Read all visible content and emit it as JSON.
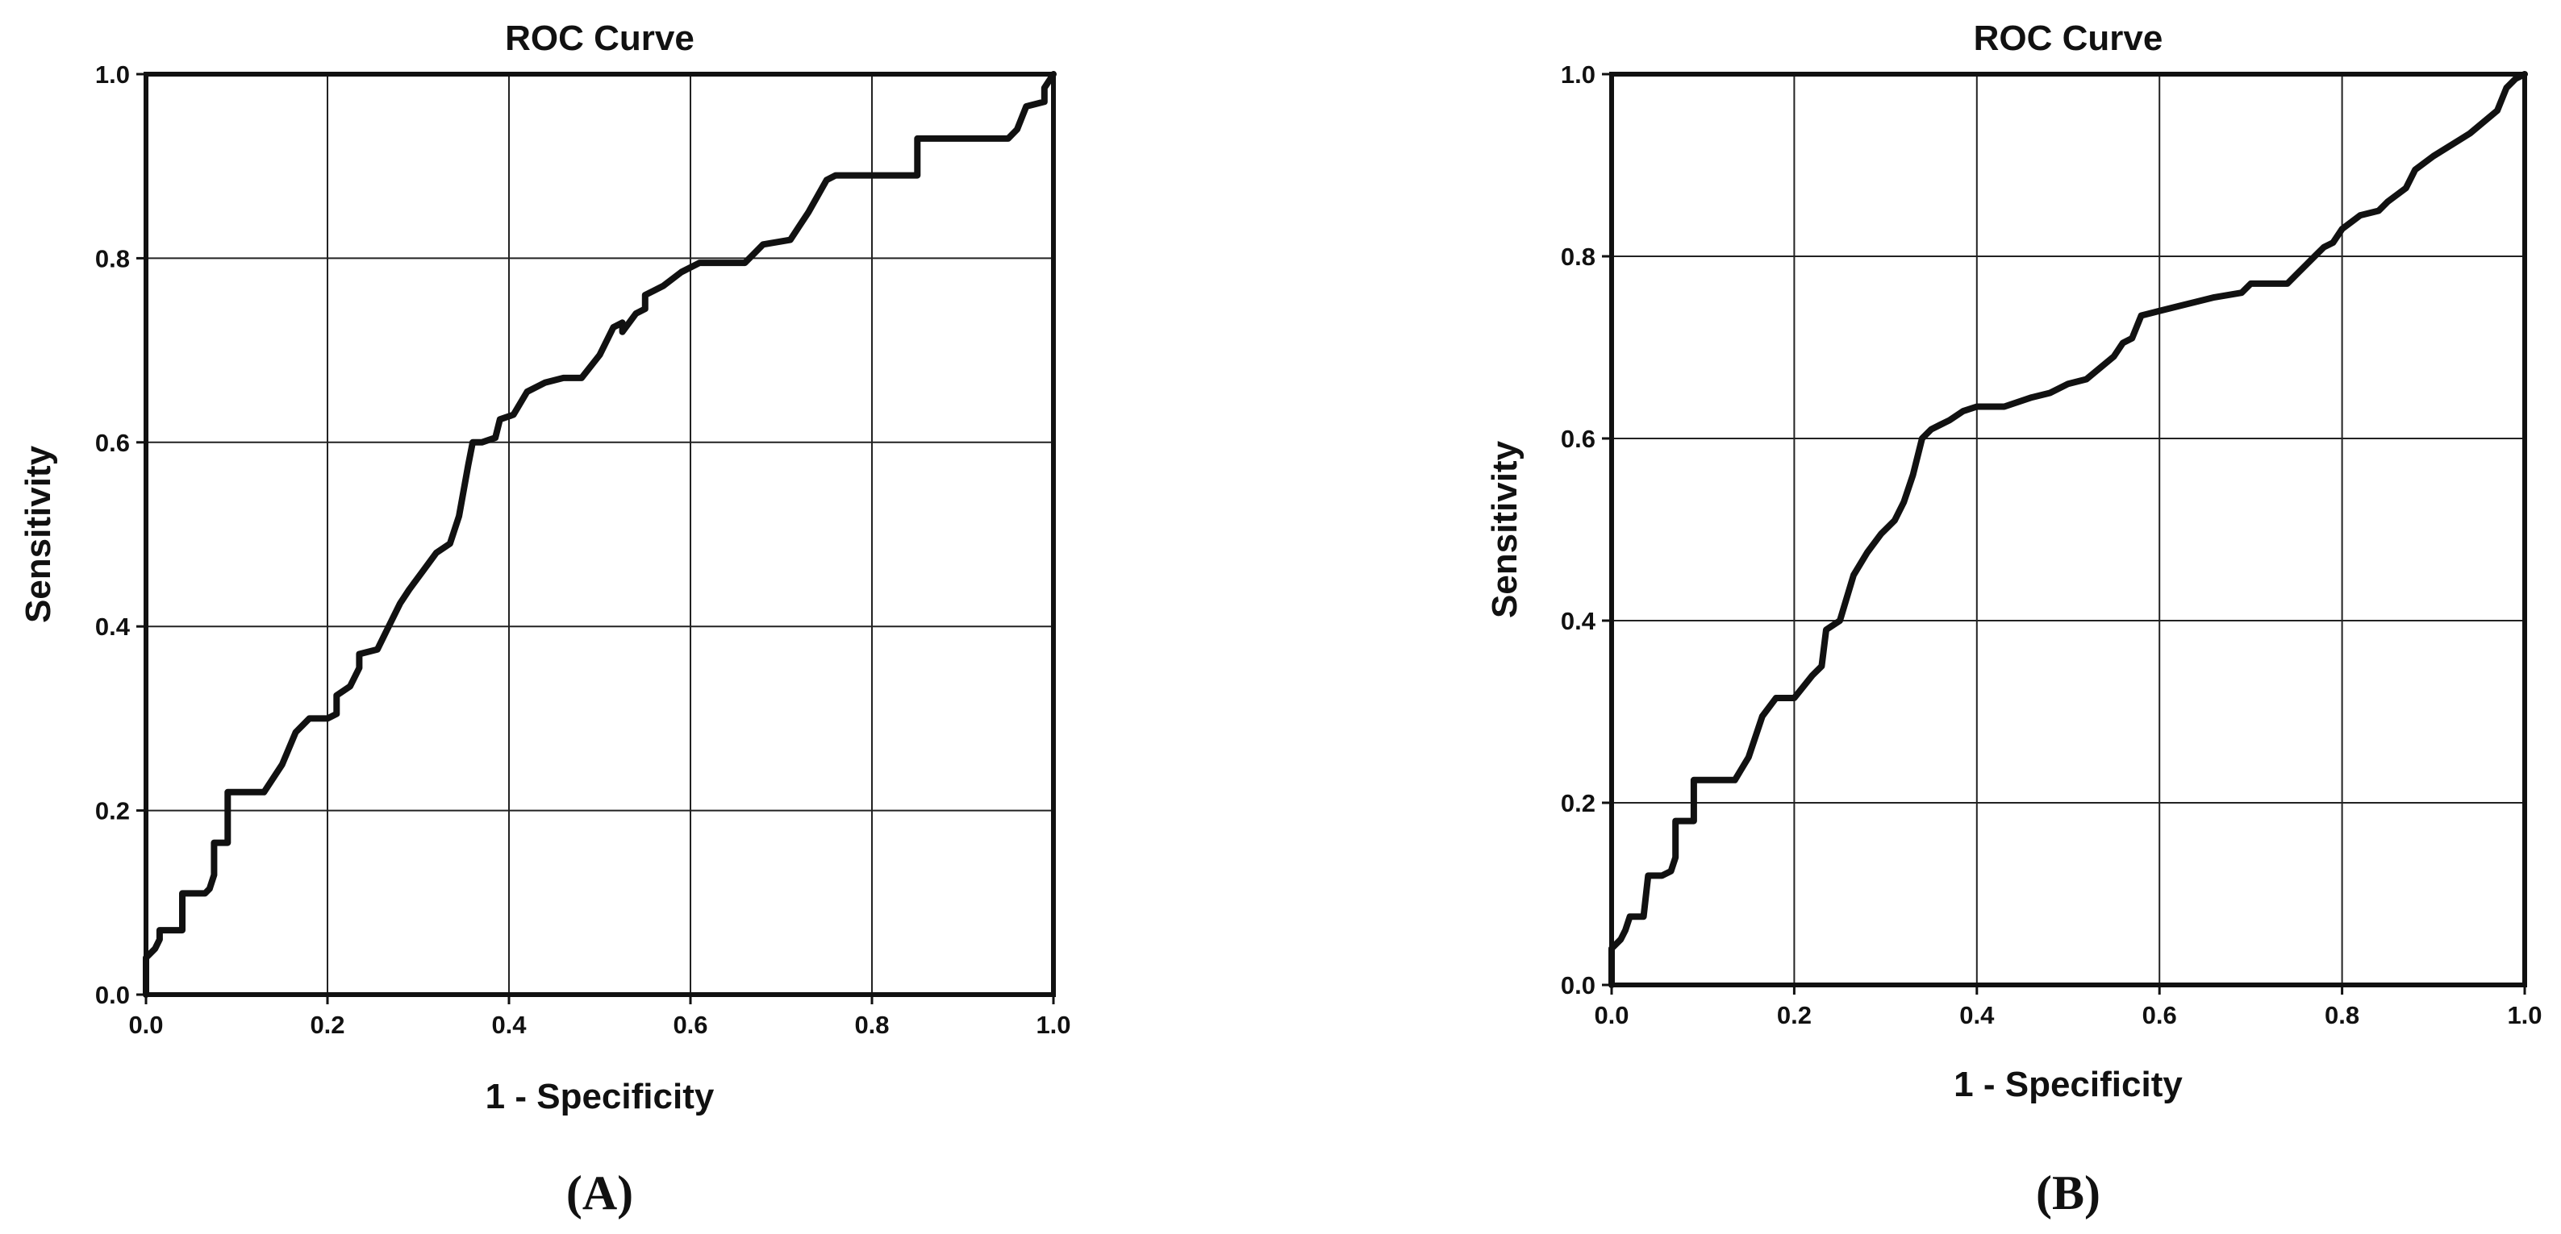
{
  "chart_data": [
    {
      "type": "line",
      "panel_label": "(A)",
      "title": "ROC Curve",
      "xlabel": "1 - Specificity",
      "ylabel": "Sensitivity",
      "xlim": [
        0,
        1
      ],
      "ylim": [
        0,
        1
      ],
      "x_ticks": [
        "0.0",
        "0.2",
        "0.4",
        "0.6",
        "0.8",
        "1.0"
      ],
      "y_ticks": [
        "0.0",
        "0.2",
        "0.4",
        "0.6",
        "0.8",
        "1.0"
      ],
      "grid": true,
      "legend": "none",
      "line_color": "#111111",
      "series": [
        {
          "x": [
            0.0,
            0.0,
            0.01,
            0.015,
            0.015,
            0.04,
            0.04,
            0.065,
            0.07,
            0.075,
            0.075,
            0.09,
            0.09,
            0.13,
            0.15,
            0.165,
            0.18,
            0.2,
            0.21,
            0.21,
            0.225,
            0.235,
            0.235,
            0.255,
            0.265,
            0.28,
            0.29,
            0.305,
            0.32,
            0.335,
            0.345,
            0.355,
            0.36,
            0.37,
            0.385,
            0.39,
            0.405,
            0.42,
            0.44,
            0.46,
            0.48,
            0.5,
            0.515,
            0.525,
            0.525,
            0.54,
            0.55,
            0.55,
            0.56,
            0.57,
            0.59,
            0.6,
            0.61,
            0.66,
            0.67,
            0.68,
            0.71,
            0.72,
            0.73,
            0.75,
            0.76,
            0.79,
            0.85,
            0.85,
            0.89,
            0.91,
            0.95,
            0.96,
            0.97,
            0.99,
            0.99,
            1.0
          ],
          "y": [
            0.0,
            0.04,
            0.05,
            0.06,
            0.07,
            0.07,
            0.11,
            0.11,
            0.115,
            0.13,
            0.165,
            0.165,
            0.22,
            0.22,
            0.25,
            0.285,
            0.3,
            0.3,
            0.305,
            0.325,
            0.335,
            0.355,
            0.37,
            0.375,
            0.395,
            0.425,
            0.44,
            0.46,
            0.48,
            0.49,
            0.52,
            0.575,
            0.6,
            0.6,
            0.605,
            0.625,
            0.63,
            0.655,
            0.665,
            0.67,
            0.67,
            0.695,
            0.725,
            0.73,
            0.72,
            0.74,
            0.745,
            0.76,
            0.765,
            0.77,
            0.785,
            0.79,
            0.795,
            0.795,
            0.805,
            0.815,
            0.82,
            0.835,
            0.85,
            0.885,
            0.89,
            0.89,
            0.89,
            0.93,
            0.93,
            0.93,
            0.93,
            0.94,
            0.965,
            0.97,
            0.985,
            1.0
          ]
        }
      ]
    },
    {
      "type": "line",
      "panel_label": "(B)",
      "title": "ROC Curve",
      "xlabel": "1 - Specificity",
      "ylabel": "Sensitivity",
      "xlim": [
        0,
        1
      ],
      "ylim": [
        0,
        1
      ],
      "x_ticks": [
        "0.0",
        "0.2",
        "0.4",
        "0.6",
        "0.8",
        "1.0"
      ],
      "y_ticks": [
        "0.0",
        "0.2",
        "0.4",
        "0.6",
        "0.8",
        "1.0"
      ],
      "grid": true,
      "legend": "none",
      "line_color": "#111111",
      "series": [
        {
          "x": [
            0.0,
            0.0,
            0.01,
            0.015,
            0.02,
            0.035,
            0.04,
            0.055,
            0.065,
            0.07,
            0.07,
            0.09,
            0.09,
            0.135,
            0.15,
            0.165,
            0.18,
            0.2,
            0.22,
            0.23,
            0.235,
            0.25,
            0.265,
            0.28,
            0.295,
            0.31,
            0.32,
            0.33,
            0.34,
            0.35,
            0.36,
            0.37,
            0.385,
            0.4,
            0.43,
            0.46,
            0.48,
            0.5,
            0.52,
            0.55,
            0.56,
            0.57,
            0.58,
            0.6,
            0.62,
            0.64,
            0.66,
            0.69,
            0.7,
            0.72,
            0.74,
            0.75,
            0.76,
            0.77,
            0.78,
            0.79,
            0.8,
            0.82,
            0.84,
            0.85,
            0.87,
            0.88,
            0.9,
            0.94,
            0.97,
            0.98,
            0.99,
            1.0
          ],
          "y": [
            0.0,
            0.04,
            0.05,
            0.06,
            0.075,
            0.075,
            0.12,
            0.12,
            0.125,
            0.14,
            0.18,
            0.18,
            0.225,
            0.225,
            0.25,
            0.295,
            0.315,
            0.315,
            0.34,
            0.35,
            0.39,
            0.4,
            0.45,
            0.475,
            0.495,
            0.51,
            0.53,
            0.56,
            0.6,
            0.61,
            0.615,
            0.62,
            0.63,
            0.635,
            0.635,
            0.645,
            0.65,
            0.66,
            0.665,
            0.69,
            0.705,
            0.71,
            0.735,
            0.74,
            0.745,
            0.75,
            0.755,
            0.76,
            0.77,
            0.77,
            0.77,
            0.78,
            0.79,
            0.8,
            0.81,
            0.815,
            0.83,
            0.845,
            0.85,
            0.86,
            0.875,
            0.895,
            0.91,
            0.935,
            0.96,
            0.985,
            0.995,
            1.0
          ]
        }
      ]
    }
  ]
}
